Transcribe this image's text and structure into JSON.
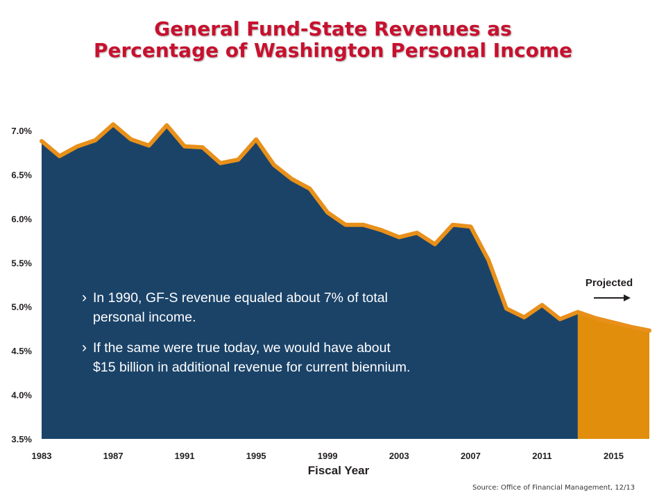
{
  "title": {
    "line1": "General Fund-State Revenues as",
    "line2": "Percentage of Washington Personal Income"
  },
  "source": "Source: Office of Financial Management, 12/13",
  "colors": {
    "title": "#c8102e",
    "area_fill": "#1b4368",
    "line": "#e8901a",
    "projected_fill": "#e08e0b",
    "text_on_area": "#ffffff"
  },
  "chart_data": {
    "type": "area",
    "title": "General Fund-State Revenues as Percentage of Washington Personal Income",
    "xlabel": "Fiscal Year",
    "ylabel": "",
    "ylim": [
      3.5,
      7.0
    ],
    "xlim": [
      1983,
      2017
    ],
    "yticks": [
      "7.0%",
      "6.5%",
      "6.0%",
      "5.5%",
      "5.0%",
      "4.5%",
      "4.0%",
      "3.5%"
    ],
    "ytick_values": [
      7.0,
      6.5,
      6.0,
      5.5,
      5.0,
      4.5,
      4.0,
      3.5
    ],
    "xticks": [
      "1983",
      "1987",
      "1991",
      "1995",
      "1999",
      "2003",
      "2007",
      "2011",
      "2015"
    ],
    "xtick_values": [
      1983,
      1987,
      1991,
      1995,
      1999,
      2003,
      2007,
      2011,
      2015
    ],
    "grid": false,
    "series": [
      {
        "x": [
          1983,
          1984,
          1985,
          1986,
          1987,
          1988,
          1989,
          1990,
          1991,
          1992,
          1993,
          1994,
          1995,
          1996,
          1997,
          1998,
          1999,
          2000,
          2001,
          2002,
          2003,
          2004,
          2005,
          2006,
          2007,
          2008,
          2009,
          2010,
          2011,
          2012,
          2013
        ],
        "values": [
          6.88,
          6.71,
          6.82,
          6.89,
          7.07,
          6.9,
          6.83,
          7.06,
          6.82,
          6.81,
          6.63,
          6.67,
          6.9,
          6.61,
          6.45,
          6.34,
          6.07,
          5.93,
          5.93,
          5.87,
          5.79,
          5.84,
          5.71,
          5.93,
          5.91,
          5.53,
          4.98,
          4.88,
          5.02,
          4.86,
          4.94
        ]
      },
      {
        "name": "Projected",
        "x": [
          2013,
          2014,
          2015,
          2016,
          2017
        ],
        "values": [
          4.94,
          4.87,
          4.82,
          4.77,
          4.73
        ]
      }
    ],
    "annotations": {
      "projected_label": "Projected",
      "projected_arrow": "→",
      "bullet": "›",
      "callout_1_line1": "In 1990, GF-S revenue equaled about 7% of total",
      "callout_1_line2": "personal income.",
      "callout_2_line1": "If the same were true today, we would have about",
      "callout_2_line2": "$15 billion in additional revenue for current biennium."
    }
  }
}
